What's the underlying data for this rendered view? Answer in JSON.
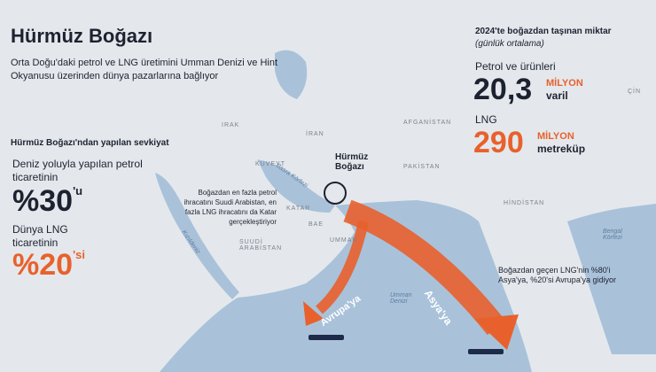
{
  "header": {
    "title": "Hürmüz Boğazı",
    "subtitle": "Orta Doğu'daki petrol ve LNG üretimini Umman Denizi ve Hint Okyanusu üzerinden dünya pazarlarına bağlıyor"
  },
  "left": {
    "heading": "Hürmüz Boğazı'ndan yapılan sevkiyat",
    "items": [
      {
        "label": "Deniz yoluyla yapılan petrol ticaretinin",
        "value": "%30",
        "suffix": "'u"
      },
      {
        "label": "Dünya LNG ticaretinin",
        "value": "%20",
        "suffix": "'si"
      }
    ]
  },
  "right": {
    "heading": "2024'te boğazdan taşınan miktar",
    "subheading": "(günlük ortalama)",
    "items": [
      {
        "label": "Petrol ve ürünleri",
        "value": "20,3",
        "unit1": "MİLYON",
        "unit2": "varil"
      },
      {
        "label": "LNG",
        "value": "290",
        "unit1": "MİLYON",
        "unit2": "metreküp"
      }
    ]
  },
  "map": {
    "strait": "Hürmüz Boğazı",
    "countries": [
      "IRAK",
      "İRAN",
      "AFGANİSTAN",
      "PAKİSTAN",
      "HİNDİSTAN",
      "ÇİN",
      "SUUDİ ARABİSTAN",
      "UMMAN",
      "KATAR",
      "BAE",
      "KUVEYT"
    ],
    "seas": [
      "Umman Denizi",
      "Bengal Körfezi",
      "Basra Körfezi",
      "Kızıldeniz"
    ],
    "routes": [
      "Asya'ya",
      "Avrupa'ya"
    ]
  },
  "notes": [
    "Boğazdan en fazla petrol ihracatını Suudi Arabistan, en fazla LNG ihracatını da Katar gerçekleştiriyor",
    "Boğazdan geçen LNG'nin %80'i Asya'ya, %20'si Avrupa'ya gidiyor"
  ]
}
